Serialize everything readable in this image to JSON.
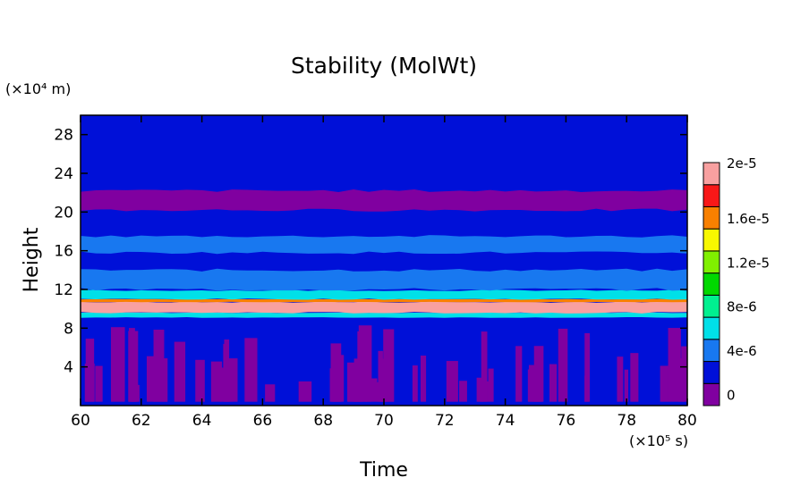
{
  "chart_data": {
    "type": "heatmap",
    "title": "Stability (MolWt)",
    "xlabel": "Time",
    "ylabel": "Height",
    "x_unit": "(×10⁵ s)",
    "y_unit": "(×10⁴ m)",
    "xlim": [
      60,
      80
    ],
    "ylim": [
      0,
      30
    ],
    "x_ticks": [
      60,
      62,
      64,
      66,
      68,
      70,
      72,
      74,
      76,
      78,
      80
    ],
    "y_ticks": [
      4,
      8,
      12,
      16,
      20,
      24,
      28
    ],
    "x_tick_labels": [
      "60",
      "62",
      "64",
      "66",
      "68",
      "70",
      "72",
      "74",
      "76",
      "78",
      "80"
    ],
    "y_tick_labels": [
      "4",
      "8",
      "12",
      "16",
      "20",
      "24",
      "28"
    ],
    "colorbar": {
      "levels": [
        0,
        2e-06,
        4e-06,
        6e-06,
        8e-06,
        1e-05,
        1.2e-05,
        1.4e-05,
        1.6e-05,
        1.8e-05,
        2e-05
      ],
      "colors": [
        "#8000a0",
        "#0010d8",
        "#1878f0",
        "#00e0e8",
        "#00f090",
        "#00d800",
        "#80f000",
        "#f8f800",
        "#f88000",
        "#f81818",
        "#f8a0a0"
      ],
      "tick_labels": [
        "0",
        "4e-6",
        "8e-6",
        "1.2e-5",
        "1.6e-5",
        "2e-5"
      ]
    },
    "bands": [
      {
        "y": [
          0,
          8.5
        ],
        "level": 0,
        "note": "patchy purple columns over blue background"
      },
      {
        "y": [
          9.1,
          9.6
        ],
        "level": 3
      },
      {
        "y": [
          9.6,
          10.7
        ],
        "level": 10
      },
      {
        "y": [
          10.7,
          11.0
        ],
        "level": 8
      },
      {
        "y": [
          11.0,
          11.9
        ],
        "level": 3
      },
      {
        "y": [
          12.0,
          14.0
        ],
        "level": 2
      },
      {
        "y": [
          15.8,
          17.5
        ],
        "level": 2
      },
      {
        "y": [
          20.2,
          22.2
        ],
        "level": 0,
        "note": "thin purple streaks"
      }
    ]
  }
}
